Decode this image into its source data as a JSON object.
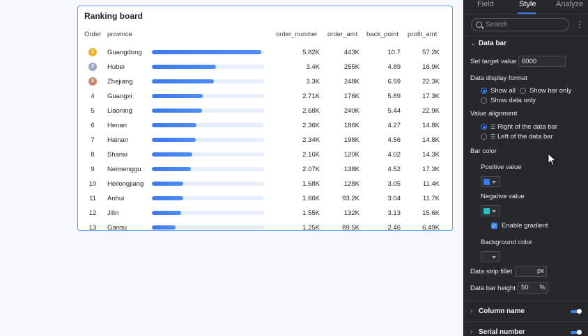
{
  "card": {
    "title": "Ranking board",
    "columns": [
      "Order",
      "province",
      "order_number",
      "order_amt",
      "back_point",
      "profit_amt"
    ],
    "rows": [
      {
        "order": "1",
        "province": "Guangdong",
        "bar": 0.975,
        "order_number": "5.82K",
        "order_amt": "443K",
        "back_point": "10.7",
        "profit_amt": "57.2K",
        "medal": "gold"
      },
      {
        "order": "2",
        "province": "Hubei",
        "bar": 0.57,
        "order_number": "3.4K",
        "order_amt": "255K",
        "back_point": "4.89",
        "profit_amt": "16.9K",
        "medal": "silver"
      },
      {
        "order": "3",
        "province": "Zhejiang",
        "bar": 0.553,
        "order_number": "3.3K",
        "order_amt": "248K",
        "back_point": "6.59",
        "profit_amt": "22.3K",
        "medal": "bronze"
      },
      {
        "order": "4",
        "province": "Guangxi",
        "bar": 0.454,
        "order_number": "2.71K",
        "order_amt": "176K",
        "back_point": "5.89",
        "profit_amt": "17.3K"
      },
      {
        "order": "5",
        "province": "Liaoning",
        "bar": 0.449,
        "order_number": "2.68K",
        "order_amt": "240K",
        "back_point": "5.44",
        "profit_amt": "22.9K"
      },
      {
        "order": "6",
        "province": "Henan",
        "bar": 0.395,
        "order_number": "2.36K",
        "order_amt": "186K",
        "back_point": "4.27",
        "profit_amt": "14.8K"
      },
      {
        "order": "7",
        "province": "Hainan",
        "bar": 0.392,
        "order_number": "2.34K",
        "order_amt": "198K",
        "back_point": "4.56",
        "profit_amt": "14.8K"
      },
      {
        "order": "8",
        "province": "Shanxi",
        "bar": 0.362,
        "order_number": "2.16K",
        "order_amt": "120K",
        "back_point": "4.02",
        "profit_amt": "14.3K"
      },
      {
        "order": "9",
        "province": "Neimenggu",
        "bar": 0.347,
        "order_number": "2.07K",
        "order_amt": "138K",
        "back_point": "4.52",
        "profit_amt": "17.3K"
      },
      {
        "order": "10",
        "province": "Heilongjiang",
        "bar": 0.281,
        "order_number": "1.68K",
        "order_amt": "128K",
        "back_point": "3.05",
        "profit_amt": "11.4K"
      },
      {
        "order": "11",
        "province": "Anhui",
        "bar": 0.278,
        "order_number": "1.66K",
        "order_amt": "93.2K",
        "back_point": "3.04",
        "profit_amt": "11.7K"
      },
      {
        "order": "12",
        "province": "Jilin",
        "bar": 0.26,
        "order_number": "1.55K",
        "order_amt": "132K",
        "back_point": "3.13",
        "profit_amt": "15.6K"
      },
      {
        "order": "13",
        "province": "Gansu",
        "bar": 0.209,
        "order_number": "1.25K",
        "order_amt": "89.5K",
        "back_point": "2.46",
        "profit_amt": "6.49K"
      }
    ]
  },
  "panel": {
    "tabs": [
      "Field",
      "Style",
      "Analyze"
    ],
    "active_tab": "Style",
    "search_placeholder": "Search",
    "more_glyph": "⋮",
    "data_bar": {
      "section_title": "Data bar",
      "target_label": "Set target value",
      "target_value": "6000",
      "display_format_label": "Data display format",
      "format_options": [
        "Show all",
        "Show bar only",
        "Show data only"
      ],
      "format_selected": "Show all",
      "alignment_label": "Value alignment",
      "alignment_options": [
        "Right of the data bar",
        "Left of the data bar"
      ],
      "alignment_selected": "Right of the data bar",
      "bar_color_label": "Bar color",
      "positive_label": "Positive value",
      "positive_color": "#3d79ea",
      "negative_label": "Negative value",
      "negative_color": "#2bbfc2",
      "gradient_label": "Enable gradient",
      "gradient_checked": true,
      "background_label": "Background color",
      "fillet_label": "Data strip fillet",
      "fillet_value": "",
      "fillet_unit": "px",
      "height_label": "Data bar height",
      "height_value": "50",
      "height_unit": "%"
    },
    "column_name": {
      "title": "Column name",
      "enabled": true
    },
    "serial_number": {
      "title": "Serial number",
      "enabled": true
    }
  },
  "colors": {
    "accent": "#3a82f7",
    "gold": "#f0b030",
    "silver": "#9aa8c6",
    "bronze": "#c98a6a"
  }
}
